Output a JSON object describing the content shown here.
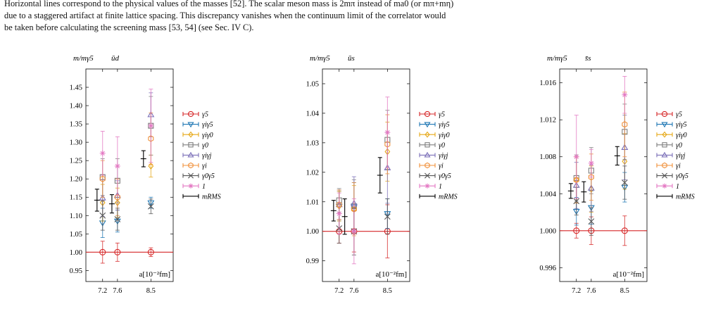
{
  "caption": {
    "lines": [
      "Horizontal lines correspond to the physical values of the masses [52]. The scalar meson mass is 2mπ instead of ma0 (or mπ+mη)",
      "due to a staggered artifact at finite lattice spacing. This discrepancy vanishes when the continuum limit of the correlator would",
      "be taken before calculating the screening mass [53, 54] (see Sec. IV C)."
    ]
  },
  "colors": {
    "g5": "#d62728",
    "gig5": "#1f77b4",
    "gig0": "#e6a817",
    "g0": "#7f7f7f",
    "gigj": "#7b6fb8",
    "gi": "#f0903a",
    "g0g5": "#555555",
    "one": "#e377c2",
    "rms": "#000000"
  },
  "legend": {
    "entries": [
      {
        "key": "g5",
        "label": "γ5",
        "marker": "circle"
      },
      {
        "key": "gig5",
        "label": "γiγ5",
        "marker": "tri_down"
      },
      {
        "key": "gig0",
        "label": "γiγ0",
        "marker": "diamond"
      },
      {
        "key": "g0",
        "label": "γ0",
        "marker": "square"
      },
      {
        "key": "gigj",
        "label": "γiγj",
        "marker": "tri_up"
      },
      {
        "key": "gi",
        "label": "γi",
        "marker": "hexagon"
      },
      {
        "key": "g0g5",
        "label": "γ0γ5",
        "marker": "x"
      },
      {
        "key": "one",
        "label": "1",
        "marker": "star"
      },
      {
        "key": "rms",
        "label": "mRMS",
        "marker": "none"
      }
    ]
  },
  "chart_data": [
    {
      "type": "scatter",
      "title": "ūd",
      "ylabel": "m/mγ5",
      "xlabel": "a[10⁻²fm]",
      "xticks": [
        7.2,
        7.6,
        8.5
      ],
      "xlim": [
        6.75,
        9.1
      ],
      "ylim": [
        0.92,
        1.5
      ],
      "yticks": [
        0.95,
        1.0,
        1.05,
        1.1,
        1.15,
        1.2,
        1.25,
        1.3,
        1.35,
        1.4,
        1.45
      ],
      "ytick_labels": [
        "0.95",
        "1.00",
        "1.05",
        "1.10",
        "1.15",
        "1.20",
        "1.25",
        "1.30",
        "1.35",
        "1.40",
        "1.45"
      ],
      "hline": 1.0,
      "rms": [
        {
          "x": 7.05,
          "y": 1.142,
          "err": 0.03
        },
        {
          "x": 7.45,
          "y": 1.132,
          "err": 0.025
        },
        {
          "x": 8.3,
          "y": 1.255,
          "err": 0.022
        }
      ],
      "series": [
        {
          "key": "g5",
          "points": [
            {
              "x": 7.2,
              "y": 1.0,
              "err": 0.03
            },
            {
              "x": 7.6,
              "y": 1.0,
              "err": 0.025
            },
            {
              "x": 8.5,
              "y": 1.0,
              "err": 0.012
            }
          ]
        },
        {
          "key": "gig5",
          "points": [
            {
              "x": 7.2,
              "y": 1.08,
              "err": 0.04
            },
            {
              "x": 7.6,
              "y": 1.085,
              "err": 0.03
            },
            {
              "x": 8.5,
              "y": 1.135,
              "err": 0.015
            }
          ]
        },
        {
          "key": "gig0",
          "points": [
            {
              "x": 7.2,
              "y": 1.135,
              "err": 0.05
            },
            {
              "x": 7.6,
              "y": 1.135,
              "err": 0.04
            },
            {
              "x": 8.5,
              "y": 1.235,
              "err": 0.03
            }
          ]
        },
        {
          "key": "g0",
          "points": [
            {
              "x": 7.2,
              "y": 1.205,
              "err": 0.05
            },
            {
              "x": 7.6,
              "y": 1.195,
              "err": 0.06
            },
            {
              "x": 8.5,
              "y": 1.345,
              "err": 0.08
            }
          ]
        },
        {
          "key": "gigj",
          "points": [
            {
              "x": 7.2,
              "y": 1.148,
              "err": 0.05
            },
            {
              "x": 7.6,
              "y": 1.155,
              "err": 0.04
            },
            {
              "x": 8.5,
              "y": 1.375,
              "err": 0.06
            }
          ]
        },
        {
          "key": "gi",
          "points": [
            {
              "x": 7.2,
              "y": 1.2,
              "err": 0.05
            },
            {
              "x": 7.6,
              "y": 1.15,
              "err": 0.05
            },
            {
              "x": 8.5,
              "y": 1.31,
              "err": 0.07
            }
          ]
        },
        {
          "key": "g0g5",
          "points": [
            {
              "x": 7.2,
              "y": 1.1,
              "err": 0.04
            },
            {
              "x": 7.6,
              "y": 1.09,
              "err": 0.03
            },
            {
              "x": 8.5,
              "y": 1.125,
              "err": 0.02
            }
          ]
        },
        {
          "key": "one",
          "points": [
            {
              "x": 7.2,
              "y": 1.27,
              "err": 0.06
            },
            {
              "x": 7.6,
              "y": 1.235,
              "err": 0.08
            },
            {
              "x": 8.5,
              "y": 1.345,
              "err": 0.1
            }
          ]
        }
      ]
    },
    {
      "type": "scatter",
      "title": "ūs",
      "ylabel": "m/mγ5",
      "xlabel": "a[10⁻²fm]",
      "xticks": [
        7.2,
        7.6,
        8.5
      ],
      "xlim": [
        6.75,
        9.1
      ],
      "ylim": [
        0.983,
        1.055
      ],
      "yticks": [
        0.99,
        1.0,
        1.01,
        1.02,
        1.03,
        1.04,
        1.05
      ],
      "ytick_labels": [
        "0.99",
        "1.00",
        "1.01",
        "1.02",
        "1.03",
        "1.04",
        "1.05"
      ],
      "hline": 1.0,
      "rms": [
        {
          "x": 7.05,
          "y": 1.007,
          "err": 0.0035
        },
        {
          "x": 7.35,
          "y": 1.005,
          "err": 0.006
        },
        {
          "x": 8.3,
          "y": 1.019,
          "err": 0.006
        }
      ],
      "series": [
        {
          "key": "g5",
          "points": [
            {
              "x": 7.2,
              "y": 1.0,
              "err": 0.004
            },
            {
              "x": 7.6,
              "y": 1.0,
              "err": 0.007
            },
            {
              "x": 8.5,
              "y": 1.0,
              "err": 0.009
            }
          ]
        },
        {
          "key": "gig5",
          "points": [
            {
              "x": 7.2,
              "y": 1.0085,
              "err": 0.005
            },
            {
              "x": 7.6,
              "y": 1.0085,
              "err": 0.008
            },
            {
              "x": 8.5,
              "y": 1.006,
              "err": 0.005
            }
          ]
        },
        {
          "key": "gig0",
          "points": [
            {
              "x": 7.2,
              "y": 1.0085,
              "err": 0.005
            },
            {
              "x": 7.6,
              "y": 1.0075,
              "err": 0.008
            },
            {
              "x": 8.5,
              "y": 1.027,
              "err": 0.01
            }
          ]
        },
        {
          "key": "g0",
          "points": [
            {
              "x": 7.2,
              "y": 1.0105,
              "err": 0.004
            },
            {
              "x": 7.6,
              "y": 1.0085,
              "err": 0.009
            },
            {
              "x": 8.5,
              "y": 1.031,
              "err": 0.01
            }
          ]
        },
        {
          "key": "gigj",
          "points": [
            {
              "x": 7.2,
              "y": 1.009,
              "err": 0.005
            },
            {
              "x": 7.6,
              "y": 1.0095,
              "err": 0.009
            },
            {
              "x": 8.5,
              "y": 1.0215,
              "err": 0.012
            }
          ]
        },
        {
          "key": "gi",
          "points": [
            {
              "x": 7.2,
              "y": 1.009,
              "err": 0.005
            },
            {
              "x": 7.6,
              "y": 1.0075,
              "err": 0.009
            },
            {
              "x": 8.5,
              "y": 1.0295,
              "err": 0.01
            }
          ]
        },
        {
          "key": "g0g5",
          "points": [
            {
              "x": 7.2,
              "y": 1.001,
              "err": 0.005
            },
            {
              "x": 7.6,
              "y": 1.0,
              "err": 0.008
            },
            {
              "x": 8.5,
              "y": 1.005,
              "err": 0.006
            }
          ]
        },
        {
          "key": "one",
          "points": [
            {
              "x": 7.2,
              "y": 1.006,
              "err": 0.007
            },
            {
              "x": 7.6,
              "y": 1.0,
              "err": 0.011
            },
            {
              "x": 8.5,
              "y": 1.0335,
              "err": 0.012
            }
          ]
        }
      ]
    },
    {
      "type": "scatter",
      "title": "s̄s",
      "ylabel": "m/mγ5",
      "xlabel": "a[10⁻²fm]",
      "xticks": [
        7.2,
        7.6,
        8.5
      ],
      "xlim": [
        6.75,
        9.1
      ],
      "ylim": [
        0.9945,
        1.0175
      ],
      "yticks": [
        0.996,
        1.0,
        1.004,
        1.008,
        1.012,
        1.016
      ],
      "ytick_labels": [
        "0.996",
        "1.000",
        "1.004",
        "1.008",
        "1.012",
        "1.016"
      ],
      "hline": 1.0,
      "rms": [
        {
          "x": 7.05,
          "y": 1.0043,
          "err": 0.0008
        },
        {
          "x": 7.4,
          "y": 1.0042,
          "err": 0.0011
        },
        {
          "x": 8.3,
          "y": 1.0081,
          "err": 0.001
        }
      ],
      "series": [
        {
          "key": "g5",
          "points": [
            {
              "x": 7.2,
              "y": 1.0,
              "err": 0.0008
            },
            {
              "x": 7.6,
              "y": 1.0,
              "err": 0.0015
            },
            {
              "x": 8.5,
              "y": 1.0,
              "err": 0.0016
            }
          ]
        },
        {
          "key": "gig5",
          "points": [
            {
              "x": 7.2,
              "y": 1.0021,
              "err": 0.0015
            },
            {
              "x": 7.6,
              "y": 1.0025,
              "err": 0.0018
            },
            {
              "x": 8.5,
              "y": 1.0047,
              "err": 0.0016
            }
          ]
        },
        {
          "key": "gig0",
          "points": [
            {
              "x": 7.2,
              "y": 1.0055,
              "err": 0.0025
            },
            {
              "x": 7.6,
              "y": 1.0045,
              "err": 0.0025
            },
            {
              "x": 8.5,
              "y": 1.0075,
              "err": 0.003
            }
          ]
        },
        {
          "key": "g0",
          "points": [
            {
              "x": 7.2,
              "y": 1.0057,
              "err": 0.0025
            },
            {
              "x": 7.6,
              "y": 1.0065,
              "err": 0.0025
            },
            {
              "x": 8.5,
              "y": 1.0107,
              "err": 0.003
            }
          ]
        },
        {
          "key": "gigj",
          "points": [
            {
              "x": 7.2,
              "y": 1.0049,
              "err": 0.0025
            },
            {
              "x": 7.6,
              "y": 1.0046,
              "err": 0.0025
            },
            {
              "x": 8.5,
              "y": 1.009,
              "err": 0.0035
            }
          ]
        },
        {
          "key": "gi",
          "points": [
            {
              "x": 7.2,
              "y": 1.0055,
              "err": 0.0025
            },
            {
              "x": 7.6,
              "y": 1.0058,
              "err": 0.0025
            },
            {
              "x": 8.5,
              "y": 1.0115,
              "err": 0.0035
            }
          ]
        },
        {
          "key": "g0g5",
          "points": [
            {
              "x": 7.2,
              "y": 1.0032,
              "err": 0.0015
            },
            {
              "x": 7.6,
              "y": 1.001,
              "err": 0.0015
            },
            {
              "x": 8.5,
              "y": 1.0052,
              "err": 0.0018
            }
          ]
        },
        {
          "key": "one",
          "points": [
            {
              "x": 7.2,
              "y": 1.008,
              "err": 0.0045
            },
            {
              "x": 7.6,
              "y": 1.0073,
              "err": 0.0015
            },
            {
              "x": 8.5,
              "y": 1.0147,
              "err": 0.002
            }
          ]
        }
      ]
    }
  ]
}
